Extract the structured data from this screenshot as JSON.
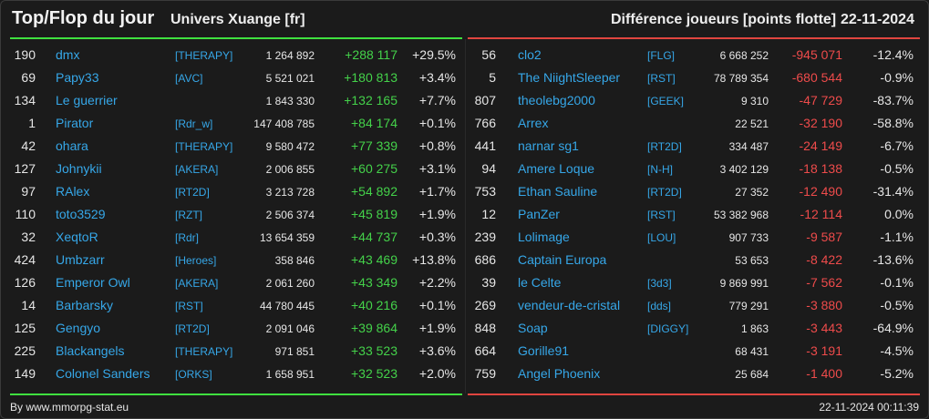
{
  "header": {
    "title": "Top/Flop du jour",
    "universe": "Univers Xuange [fr]",
    "difference": "Différence joueurs [points flotte]",
    "date": "22-11-2024"
  },
  "colors": {
    "gain": "#44d24a",
    "loss": "#ee4b4b",
    "link": "#36a7e8"
  },
  "top": [
    {
      "rank": "190",
      "name": "dmx",
      "tag": "[THERAPY]",
      "points": "1 264 892",
      "delta": "+288 117",
      "pct": "+29.5%"
    },
    {
      "rank": "69",
      "name": "Papy33",
      "tag": "[AVC]",
      "points": "5 521 021",
      "delta": "+180 813",
      "pct": "+3.4%"
    },
    {
      "rank": "134",
      "name": "Le guerrier",
      "tag": "",
      "points": "1 843 330",
      "delta": "+132 165",
      "pct": "+7.7%"
    },
    {
      "rank": "1",
      "name": "Pirator",
      "tag": "[Rdr_w]",
      "points": "147 408 785",
      "delta": "+84 174",
      "pct": "+0.1%"
    },
    {
      "rank": "42",
      "name": "ohara",
      "tag": "[THERAPY]",
      "points": "9 580 472",
      "delta": "+77 339",
      "pct": "+0.8%"
    },
    {
      "rank": "127",
      "name": "Johnykii",
      "tag": "[AKERA]",
      "points": "2 006 855",
      "delta": "+60 275",
      "pct": "+3.1%"
    },
    {
      "rank": "97",
      "name": "RAlex",
      "tag": "[RT2D]",
      "points": "3 213 728",
      "delta": "+54 892",
      "pct": "+1.7%"
    },
    {
      "rank": "110",
      "name": "toto3529",
      "tag": "[RZT]",
      "points": "2 506 374",
      "delta": "+45 819",
      "pct": "+1.9%"
    },
    {
      "rank": "32",
      "name": "XeqtoR",
      "tag": "[Rdr]",
      "points": "13 654 359",
      "delta": "+44 737",
      "pct": "+0.3%"
    },
    {
      "rank": "424",
      "name": "Umbzarr",
      "tag": "[Heroes]",
      "points": "358 846",
      "delta": "+43 469",
      "pct": "+13.8%"
    },
    {
      "rank": "126",
      "name": "Emperor Owl",
      "tag": "[AKERA]",
      "points": "2 061 260",
      "delta": "+43 349",
      "pct": "+2.2%"
    },
    {
      "rank": "14",
      "name": "Barbarsky",
      "tag": "[RST]",
      "points": "44 780 445",
      "delta": "+40 216",
      "pct": "+0.1%"
    },
    {
      "rank": "125",
      "name": "Gengyo",
      "tag": "[RT2D]",
      "points": "2 091 046",
      "delta": "+39 864",
      "pct": "+1.9%"
    },
    {
      "rank": "225",
      "name": "Blackangels",
      "tag": "[THERAPY]",
      "points": "971 851",
      "delta": "+33 523",
      "pct": "+3.6%"
    },
    {
      "rank": "149",
      "name": "Colonel Sanders",
      "tag": "[ORKS]",
      "points": "1 658 951",
      "delta": "+32 523",
      "pct": "+2.0%"
    }
  ],
  "flop": [
    {
      "rank": "56",
      "name": "clo2",
      "tag": "[FLG]",
      "points": "6 668 252",
      "delta": "-945 071",
      "pct": "-12.4%"
    },
    {
      "rank": "5",
      "name": "The NiightSleeper",
      "tag": "[RST]",
      "points": "78 789 354",
      "delta": "-680 544",
      "pct": "-0.9%"
    },
    {
      "rank": "807",
      "name": "theolebg2000",
      "tag": "[GEEK]",
      "points": "9 310",
      "delta": "-47 729",
      "pct": "-83.7%"
    },
    {
      "rank": "766",
      "name": "Arrex",
      "tag": "",
      "points": "22 521",
      "delta": "-32 190",
      "pct": "-58.8%"
    },
    {
      "rank": "441",
      "name": "narnar sg1",
      "tag": "[RT2D]",
      "points": "334 487",
      "delta": "-24 149",
      "pct": "-6.7%"
    },
    {
      "rank": "94",
      "name": "Amere Loque",
      "tag": "[N-H]",
      "points": "3 402 129",
      "delta": "-18 138",
      "pct": "-0.5%"
    },
    {
      "rank": "753",
      "name": "Ethan Sauline",
      "tag": "[RT2D]",
      "points": "27 352",
      "delta": "-12 490",
      "pct": "-31.4%"
    },
    {
      "rank": "12",
      "name": "PanZer",
      "tag": "[RST]",
      "points": "53 382 968",
      "delta": "-12 114",
      "pct": "0.0%"
    },
    {
      "rank": "239",
      "name": "Lolimage",
      "tag": "[LOU]",
      "points": "907 733",
      "delta": "-9 587",
      "pct": "-1.1%"
    },
    {
      "rank": "686",
      "name": "Captain Europa",
      "tag": "",
      "points": "53 653",
      "delta": "-8 422",
      "pct": "-13.6%"
    },
    {
      "rank": "39",
      "name": "le Celte",
      "tag": "[3d3]",
      "points": "9 869 991",
      "delta": "-7 562",
      "pct": "-0.1%"
    },
    {
      "rank": "269",
      "name": "vendeur-de-cristal",
      "tag": "[dds]",
      "points": "779 291",
      "delta": "-3 880",
      "pct": "-0.5%"
    },
    {
      "rank": "848",
      "name": "Soap",
      "tag": "[DIGGY]",
      "points": "1 863",
      "delta": "-3 443",
      "pct": "-64.9%"
    },
    {
      "rank": "664",
      "name": "Gorille91",
      "tag": "",
      "points": "68 431",
      "delta": "-3 191",
      "pct": "-4.5%"
    },
    {
      "rank": "759",
      "name": "Angel Phoenix",
      "tag": "",
      "points": "25 684",
      "delta": "-1 400",
      "pct": "-5.2%"
    }
  ],
  "footer": {
    "credit": "By www.mmorpg-stat.eu",
    "timestamp": "22-11-2024 00:11:39"
  }
}
